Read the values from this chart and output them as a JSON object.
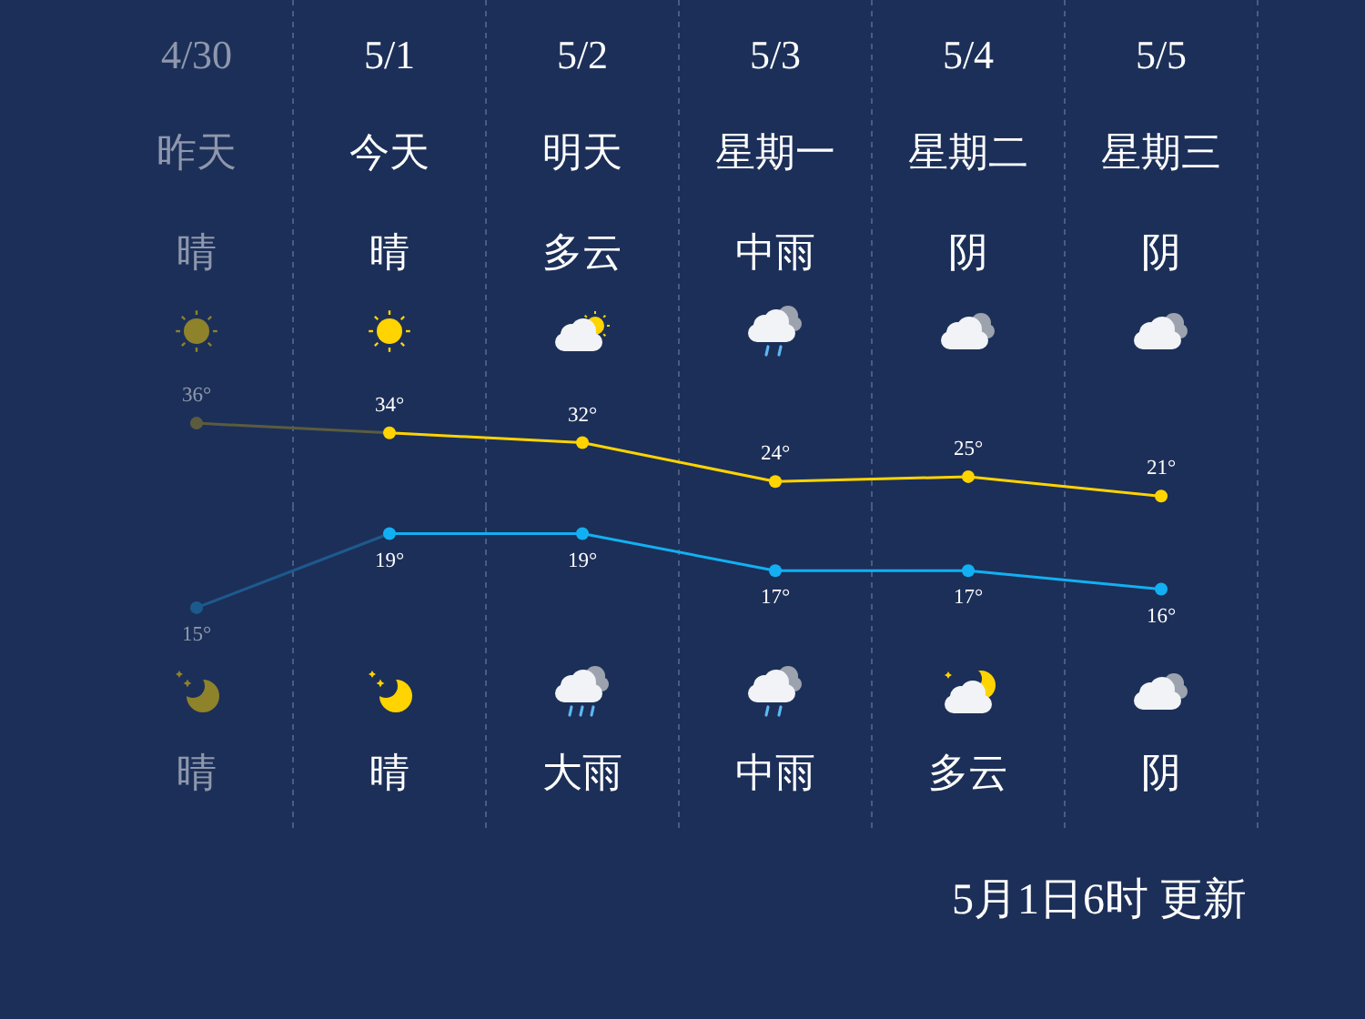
{
  "chart_data": [
    {
      "type": "line",
      "categories": [
        "4/30",
        "5/1",
        "5/2",
        "5/3",
        "5/4",
        "5/5"
      ],
      "series": [
        {
          "colors": [
            "#5b5c3e",
            "#ffd400",
            "#ffd400",
            "#ffd400",
            "#ffd400",
            "#ffd400"
          ],
          "values": [
            36,
            34,
            32,
            24,
            25,
            21
          ],
          "value_labels": [
            "36°",
            "34°",
            "32°",
            "24°",
            "25°",
            "21°"
          ]
        }
      ],
      "ylim": [
        19,
        123
      ],
      "tick_labels": "x",
      "grid": "x",
      "marker": "circle",
      "annotations": [
        "昨天",
        "今天",
        "明天",
        "星期一",
        "星期二",
        "星期三",
        "晴",
        "晴",
        "多云",
        "中雨",
        "阴",
        "阴"
      ]
    },
    {
      "type": "line",
      "categories": [
        null,
        null,
        null,
        null,
        null,
        null
      ],
      "series": [
        {
          "colors": [
            "#1c5a8e",
            "#12b0f2",
            "#12b0f2",
            "#12b0f2",
            "#12b0f2",
            "#12b0f2"
          ],
          "values": [
            15,
            19,
            19,
            17,
            17,
            16
          ],
          "value_labels": [
            "15°",
            "19°",
            "19°",
            "17°",
            "17°",
            "16°"
          ]
        }
      ],
      "ylim": [
        3,
        20.5
      ],
      "tick_labels": false,
      "grid": "x",
      "marker": "circle",
      "annotations": [
        "晴",
        "晴",
        "大雨",
        "中雨",
        "多云",
        "阴",
        "5月1日6时 更新"
      ]
    }
  ]
}
